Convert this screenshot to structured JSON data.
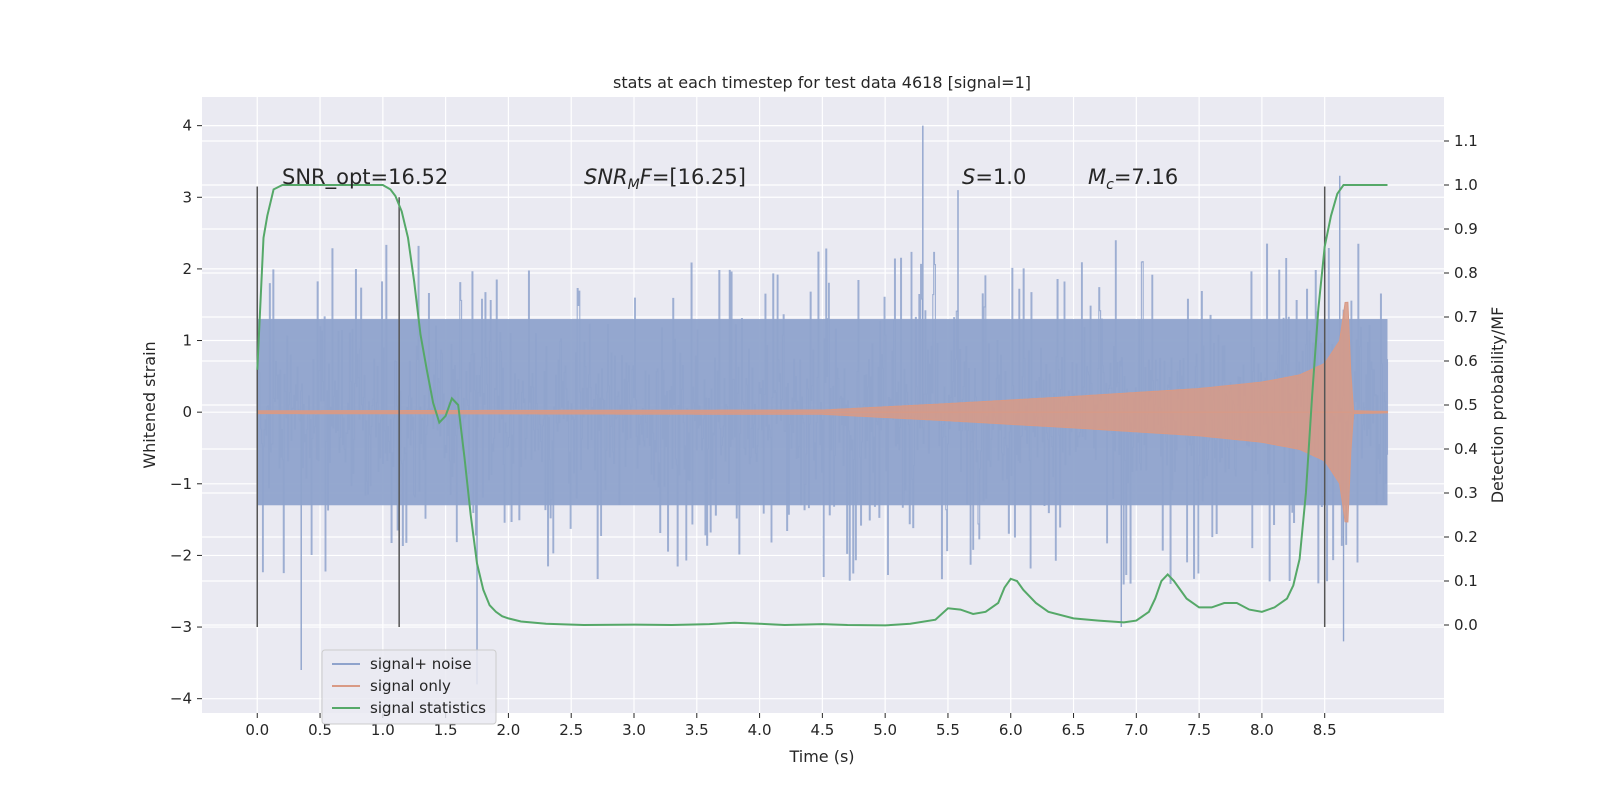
{
  "chart_data": {
    "type": "line",
    "title": "stats at each timestep for test data 4618 [signal=1]",
    "xlabel": "Time (s)",
    "ylabel_left": "Whitened strain",
    "ylabel_right": "Detection probability/MF",
    "xlim": [
      -0.44,
      9.45
    ],
    "ylim_left": [
      -4.2,
      4.4
    ],
    "ylim_right": [
      -0.2,
      1.2
    ],
    "x_ticks": [
      "0.0",
      "0.5",
      "1.0",
      "1.5",
      "2.0",
      "2.5",
      "3.0",
      "3.5",
      "4.0",
      "4.5",
      "5.0",
      "5.5",
      "6.0",
      "6.5",
      "7.0",
      "7.5",
      "8.0",
      "8.5"
    ],
    "x_tick_values": [
      0,
      0.5,
      1,
      1.5,
      2,
      2.5,
      3,
      3.5,
      4,
      4.5,
      5,
      5.5,
      6,
      6.5,
      7,
      7.5,
      8,
      8.5
    ],
    "y_ticks_left": [
      "−4",
      "−3",
      "−2",
      "−1",
      "0",
      "1",
      "2",
      "3",
      "4"
    ],
    "y_tick_values_left": [
      -4,
      -3,
      -2,
      -1,
      0,
      1,
      2,
      3,
      4
    ],
    "y_ticks_right": [
      "0.0",
      "0.1",
      "0.2",
      "0.3",
      "0.4",
      "0.5",
      "0.6",
      "0.7",
      "0.8",
      "0.9",
      "1.0",
      "1.1"
    ],
    "y_tick_values_right": [
      0,
      0.1,
      0.2,
      0.3,
      0.4,
      0.5,
      0.6,
      0.7,
      0.8,
      0.9,
      1.0,
      1.1
    ],
    "annotations": {
      "snr_opt": "SNR_opt=16.52",
      "snr_mf_sym": "SNR",
      "snr_mf_sub": "M",
      "snr_mf_rest": "F=[16.25]",
      "s_sym": "S",
      "s_rest": "=1.0",
      "mc_sym": "M",
      "mc_sub": "c",
      "mc_rest": "=7.16"
    },
    "vertical_markers": [
      {
        "x": 0.0,
        "y_range": [
          -3.0,
          3.15
        ]
      },
      {
        "x": 1.13,
        "y_range": [
          -3.0,
          3.0
        ]
      },
      {
        "x": 8.5,
        "y_range": [
          -3.0,
          3.15
        ]
      }
    ],
    "legend_position": "lower-left",
    "series": [
      {
        "name": "signal+ noise",
        "color": "#8fa3cc",
        "axis": "left",
        "description": "whitened strain, dense noise band",
        "x_range": [
          0,
          9.0
        ],
        "band_typical": [
          -1.3,
          1.3
        ],
        "band_extreme": [
          -2.4,
          2.4
        ],
        "spikes": [
          [
            0.35,
            -3.6
          ],
          [
            1.75,
            -3.8
          ],
          [
            5.3,
            4.0
          ],
          [
            5.58,
            3.1
          ],
          [
            8.65,
            -3.2
          ],
          [
            8.62,
            3.3
          ],
          [
            6.88,
            -3.0
          ]
        ]
      },
      {
        "name": "signal only",
        "color": "#d99a85",
        "axis": "left",
        "description": "chirp with growing amplitude",
        "x": [
          0,
          4.5,
          5.5,
          6.5,
          7.5,
          8.0,
          8.3,
          8.5,
          8.62,
          8.68,
          8.72,
          9.0
        ],
        "amplitude": [
          0.02,
          0.03,
          0.12,
          0.22,
          0.33,
          0.42,
          0.52,
          0.68,
          1.0,
          1.75,
          0.02,
          0.01
        ]
      },
      {
        "name": "signal statistics",
        "color": "#55a868",
        "axis": "right",
        "x": [
          0.0,
          0.05,
          0.08,
          0.13,
          0.2,
          0.3,
          0.5,
          0.7,
          0.9,
          1.0,
          1.06,
          1.1,
          1.15,
          1.2,
          1.25,
          1.3,
          1.35,
          1.4,
          1.45,
          1.5,
          1.55,
          1.6,
          1.65,
          1.7,
          1.75,
          1.8,
          1.85,
          1.9,
          1.95,
          2.0,
          2.1,
          2.3,
          2.6,
          3.0,
          3.3,
          3.6,
          3.8,
          4.0,
          4.2,
          4.5,
          4.7,
          5.0,
          5.2,
          5.4,
          5.5,
          5.6,
          5.7,
          5.8,
          5.9,
          5.95,
          6.0,
          6.05,
          6.1,
          6.2,
          6.3,
          6.5,
          6.7,
          6.9,
          7.0,
          7.1,
          7.15,
          7.2,
          7.25,
          7.3,
          7.4,
          7.5,
          7.6,
          7.7,
          7.8,
          7.9,
          8.0,
          8.1,
          8.2,
          8.25,
          8.3,
          8.35,
          8.4,
          8.45,
          8.5,
          8.55,
          8.6,
          8.65,
          8.7,
          8.8,
          9.0
        ],
        "y": [
          0.58,
          0.88,
          0.93,
          0.99,
          1.0,
          1.0,
          1.0,
          1.0,
          1.0,
          1.0,
          0.99,
          0.975,
          0.94,
          0.88,
          0.78,
          0.66,
          0.58,
          0.505,
          0.46,
          0.475,
          0.515,
          0.5,
          0.38,
          0.25,
          0.14,
          0.08,
          0.045,
          0.03,
          0.02,
          0.015,
          0.008,
          0.003,
          0.0,
          0.001,
          0.0,
          0.002,
          0.005,
          0.003,
          0.0,
          0.002,
          0.0,
          -0.001,
          0.003,
          0.012,
          0.038,
          0.035,
          0.025,
          0.03,
          0.05,
          0.085,
          0.105,
          0.1,
          0.08,
          0.05,
          0.03,
          0.015,
          0.01,
          0.006,
          0.01,
          0.03,
          0.06,
          0.1,
          0.115,
          0.1,
          0.06,
          0.04,
          0.04,
          0.05,
          0.05,
          0.035,
          0.03,
          0.04,
          0.06,
          0.09,
          0.15,
          0.3,
          0.52,
          0.72,
          0.86,
          0.93,
          0.98,
          1.0,
          1.0,
          1.0,
          1.0
        ]
      }
    ]
  }
}
